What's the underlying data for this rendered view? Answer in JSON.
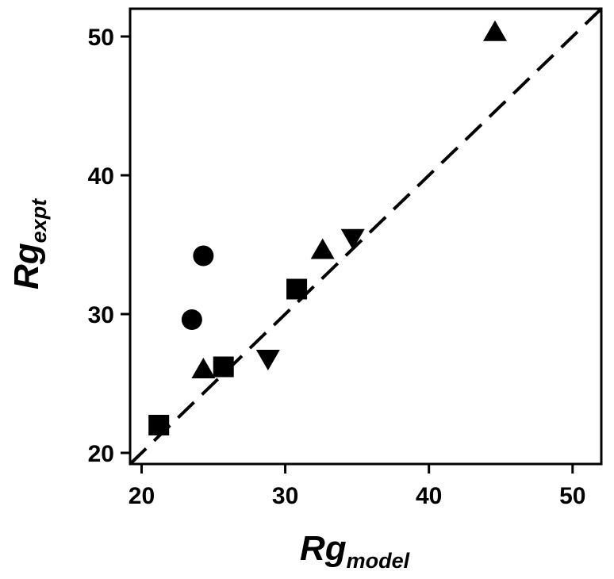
{
  "chart_data": {
    "type": "scatter",
    "title": "",
    "xlabel": {
      "main": "Rg",
      "sub": "model"
    },
    "ylabel": {
      "main": "Rg",
      "sub": "expt"
    },
    "xlim": [
      19.2,
      52
    ],
    "ylim": [
      19.2,
      52
    ],
    "x_ticks": [
      20,
      30,
      40,
      50
    ],
    "y_ticks": [
      20,
      30,
      40,
      50
    ],
    "grid": false,
    "legend": "none",
    "reference_line": {
      "style": "dashed",
      "points": [
        [
          19.2,
          19.2
        ],
        [
          52,
          52
        ]
      ]
    },
    "series": [
      {
        "marker": "square",
        "points": [
          [
            21.2,
            22.0
          ],
          [
            25.7,
            26.2
          ],
          [
            30.8,
            31.8
          ]
        ]
      },
      {
        "marker": "circle",
        "points": [
          [
            24.3,
            34.2
          ],
          [
            23.5,
            29.6
          ]
        ]
      },
      {
        "marker": "triangle-up",
        "points": [
          [
            24.3,
            26.0
          ],
          [
            32.6,
            34.6
          ],
          [
            44.6,
            50.3
          ]
        ]
      },
      {
        "marker": "triangle-down",
        "points": [
          [
            28.8,
            26.8
          ],
          [
            34.7,
            35.5
          ]
        ]
      }
    ],
    "colors": {
      "marker": "#000000",
      "axis": "#000000",
      "line": "#000000"
    }
  }
}
